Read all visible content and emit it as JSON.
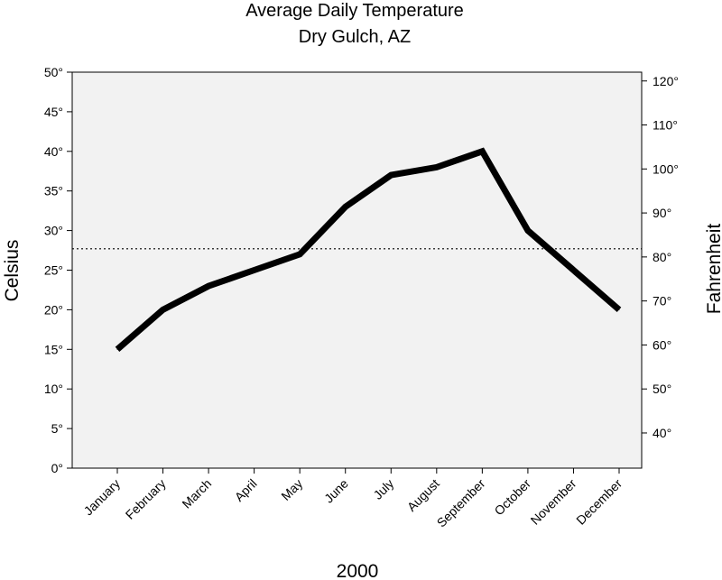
{
  "chart_data": {
    "type": "line",
    "title": "Average Daily Temperature",
    "subtitle": "Dry Gulch, AZ",
    "xlabel": "2000",
    "ylabel": "Celsius",
    "y2label": "Fahrenheit",
    "categories": [
      "January",
      "February",
      "March",
      "April",
      "May",
      "June",
      "July",
      "August",
      "September",
      "October",
      "November",
      "December"
    ],
    "series": [
      {
        "values": [
          15,
          20,
          23,
          25,
          27,
          33,
          37,
          38,
          40,
          30,
          25,
          20
        ]
      }
    ],
    "ylim": [
      0,
      50
    ],
    "y_ticks": [
      0,
      5,
      10,
      15,
      20,
      25,
      30,
      35,
      40,
      45,
      50
    ],
    "y_tick_labels": [
      "0°",
      "5°",
      "10°",
      "15°",
      "20°",
      "25°",
      "30°",
      "35°",
      "40°",
      "45°",
      "50°"
    ],
    "y2_ticks": [
      40,
      50,
      60,
      70,
      80,
      90,
      100,
      110,
      120
    ],
    "y2_tick_labels": [
      "40°",
      "50°",
      "60°",
      "70°",
      "80°",
      "90°",
      "100°",
      "110°",
      "120°"
    ],
    "reference_line": {
      "value": 27.7,
      "style": "dotted"
    },
    "grid": false,
    "legend": "none",
    "colors": {
      "line": "#000000",
      "plot_background": "#f2f2f2"
    }
  }
}
